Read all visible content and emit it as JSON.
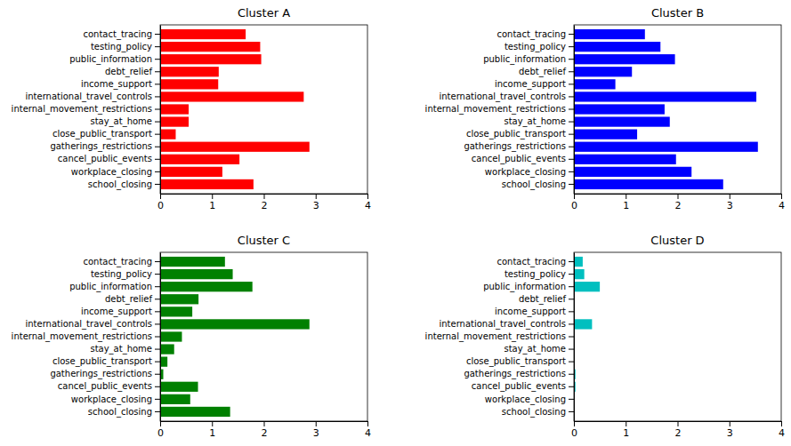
{
  "chart_data": [
    {
      "type": "bar",
      "orientation": "horizontal",
      "title": "Cluster A",
      "color": "red",
      "categories": [
        "contact_tracing",
        "testing_policy",
        "public_information",
        "debt_relief",
        "income_support",
        "international_travel_controls",
        "internal_movement_restrictions",
        "stay_at_home",
        "close_public_transport",
        "gatherings_restrictions",
        "cancel_public_events",
        "workplace_closing",
        "school_closing"
      ],
      "values": [
        1.65,
        1.93,
        1.95,
        1.13,
        1.12,
        2.77,
        0.55,
        0.55,
        0.3,
        2.88,
        1.53,
        1.2,
        1.8
      ],
      "xlim": [
        0,
        4
      ],
      "xticks": [
        0,
        1,
        2,
        3,
        4
      ]
    },
    {
      "type": "bar",
      "orientation": "horizontal",
      "title": "Cluster B",
      "color": "blue",
      "categories": [
        "contact_tracing",
        "testing_policy",
        "public_information",
        "debt_relief",
        "income_support",
        "international_travel_controls",
        "internal_movement_restrictions",
        "stay_at_home",
        "close_public_transport",
        "gatherings_restrictions",
        "cancel_public_events",
        "workplace_closing",
        "school_closing"
      ],
      "values": [
        1.37,
        1.67,
        1.95,
        1.12,
        0.8,
        3.52,
        1.75,
        1.85,
        1.22,
        3.55,
        1.97,
        2.27,
        2.88
      ],
      "xlim": [
        0,
        4
      ],
      "xticks": [
        0,
        1,
        2,
        3,
        4
      ]
    },
    {
      "type": "bar",
      "orientation": "horizontal",
      "title": "Cluster C",
      "color": "green",
      "categories": [
        "contact_tracing",
        "testing_policy",
        "public_information",
        "debt_relief",
        "income_support",
        "international_travel_controls",
        "internal_movement_restrictions",
        "stay_at_home",
        "close_public_transport",
        "gatherings_restrictions",
        "cancel_public_events",
        "workplace_closing",
        "school_closing"
      ],
      "values": [
        1.25,
        1.4,
        1.78,
        0.74,
        0.62,
        2.88,
        0.42,
        0.27,
        0.14,
        0.06,
        0.73,
        0.58,
        1.35
      ],
      "xlim": [
        0,
        4
      ],
      "xticks": [
        0,
        1,
        2,
        3,
        4
      ]
    },
    {
      "type": "bar",
      "orientation": "horizontal",
      "title": "Cluster D",
      "color": "#00bfbf",
      "categories": [
        "contact_tracing",
        "testing_policy",
        "public_information",
        "debt_relief",
        "income_support",
        "international_travel_controls",
        "internal_movement_restrictions",
        "stay_at_home",
        "close_public_transport",
        "gatherings_restrictions",
        "cancel_public_events",
        "workplace_closing",
        "school_closing"
      ],
      "values": [
        0.17,
        0.2,
        0.5,
        0,
        0,
        0.35,
        0,
        0,
        0,
        0.03,
        0.03,
        0,
        0
      ],
      "xlim": [
        0,
        4
      ],
      "xticks": [
        0,
        1,
        2,
        3,
        4
      ]
    }
  ]
}
